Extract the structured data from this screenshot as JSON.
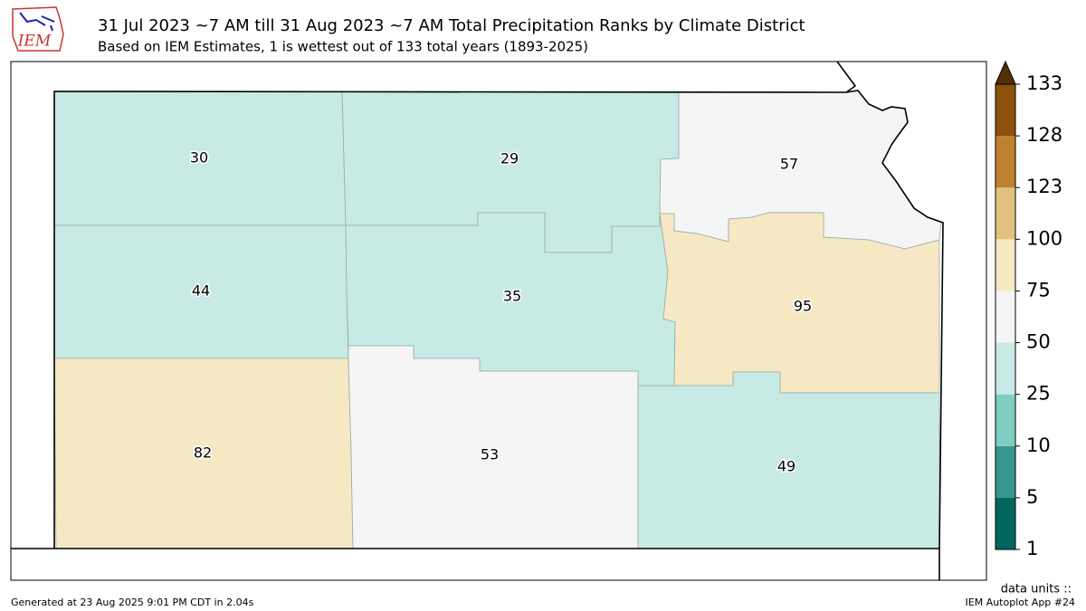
{
  "header": {
    "logo": "IEM",
    "title": "31 Jul 2023 ~7 AM till 31 Aug 2023 ~7 AM Total Precipitation Ranks by Climate District",
    "subtitle": "Based on IEM Estimates, 1 is wettest out of 133 total years (1893-2025)"
  },
  "districts": [
    {
      "rank": 30
    },
    {
      "rank": 29
    },
    {
      "rank": 57
    },
    {
      "rank": 44
    },
    {
      "rank": 35
    },
    {
      "rank": 95
    },
    {
      "rank": 82
    },
    {
      "rank": 53
    },
    {
      "rank": 49
    }
  ],
  "colorbar": {
    "ticks": [
      1,
      5,
      10,
      25,
      50,
      75,
      100,
      123,
      128,
      133
    ],
    "colors": [
      "#01665e",
      "#35978f",
      "#80cdc1",
      "#c7eae5",
      "#f5f5f5",
      "#f6e8c3",
      "#dfc27d",
      "#bf812d",
      "#8c510a"
    ],
    "extend_color": "#543005",
    "units": "data units ::"
  },
  "footer": {
    "left": "Generated at 23 Aug 2025 9:01 PM CDT in 2.04s",
    "right": "IEM Autoplot App #24"
  }
}
